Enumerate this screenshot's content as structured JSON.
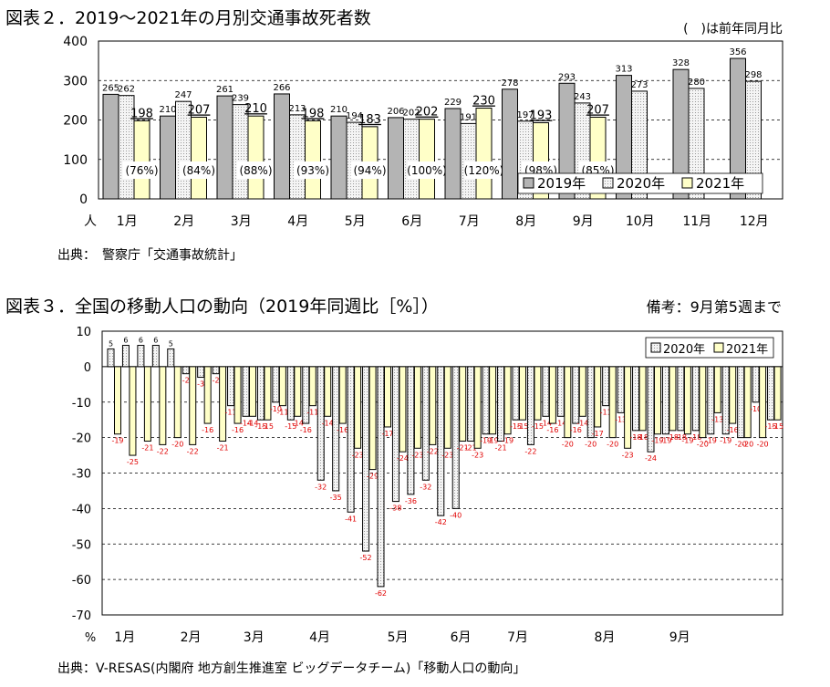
{
  "chart_data": [
    {
      "type": "bar",
      "title": "図表２．2019～2021年の月別交通事故死者数",
      "note": "(　)は前年同月比",
      "ylabel": "人",
      "ylim": [
        0,
        400
      ],
      "yticks": [
        "0",
        "100",
        "200",
        "300",
        "400"
      ],
      "grid": true,
      "legend": "bottom-right",
      "categories": [
        "1月",
        "2月",
        "3月",
        "4月",
        "5月",
        "6月",
        "7月",
        "8月",
        "9月",
        "10月",
        "11月",
        "12月"
      ],
      "series": [
        {
          "name": "2019年",
          "color": "#b4b4b4",
          "values": [
            265,
            210,
            261,
            266,
            210,
            206,
            229,
            278,
            293,
            313,
            328,
            356
          ]
        },
        {
          "name": "2020年",
          "color": "#f2f2f2",
          "values": [
            262,
            247,
            239,
            213,
            194,
            202,
            191,
            197,
            243,
            273,
            280,
            298
          ]
        },
        {
          "name": "2021年",
          "color": "#ffffc8",
          "values": [
            198,
            207,
            210,
            198,
            183,
            202,
            230,
            193,
            207,
            null,
            null,
            null
          ]
        }
      ],
      "ratio_labels": [
        "(76%)",
        "(84%)",
        "(88%)",
        "(93%)",
        "(94%)",
        "(100%)",
        "(120%)",
        "(98%)",
        "(85%)"
      ],
      "source": "出典：　警察庁「交通事故統計」"
    },
    {
      "type": "bar",
      "title": "図表３．全国の移動人口の動向（2019年同週比［%］）",
      "note": "備考：9月第5週まで",
      "ylabel": "%",
      "ylim": [
        -70,
        10
      ],
      "yticks": [
        "10",
        "0",
        "-10",
        "-20",
        "-30",
        "-40",
        "-50",
        "-60",
        "-70"
      ],
      "grid": true,
      "legend": "top-right",
      "month_labels": [
        "1月",
        "2月",
        "3月",
        "4月",
        "5月",
        "6月",
        "7月",
        "8月",
        "9月"
      ],
      "series": [
        {
          "name": "2020年",
          "color": "#f2f2f2",
          "values": [
            5,
            6,
            6,
            6,
            5,
            -2,
            -3,
            -2,
            -11,
            -14,
            -15,
            -10,
            -15,
            -16,
            -32,
            -35,
            -41,
            -52,
            -62,
            -38,
            -36,
            -32,
            -42,
            -40,
            -21,
            -19,
            -21,
            -15,
            -22,
            -14,
            -14,
            -16,
            -20,
            -11,
            -13,
            -18,
            -24,
            -19,
            -18,
            -18,
            -19,
            -19,
            -20,
            -10,
            -15
          ]
        },
        {
          "name": "2021年",
          "color": "#ffffc8",
          "values": [
            -19,
            -25,
            -21,
            -22,
            -20,
            -22,
            -16,
            -21,
            -16,
            -14,
            -15,
            -11,
            -14,
            -11,
            -14,
            -16,
            -23,
            -29,
            -17,
            -24,
            -23,
            -22,
            -23,
            -21,
            -23,
            -19,
            -19,
            -15,
            -15,
            -16,
            -20,
            -14,
            -17,
            -20,
            -23,
            -18,
            -19,
            -18,
            -19,
            -20,
            -13,
            -16,
            -20,
            -20,
            -15
          ]
        }
      ],
      "source": "出典：V-RESAS(内閣府 地方創生推進室 ビッグデータチーム)「移動人口の動向」"
    }
  ]
}
